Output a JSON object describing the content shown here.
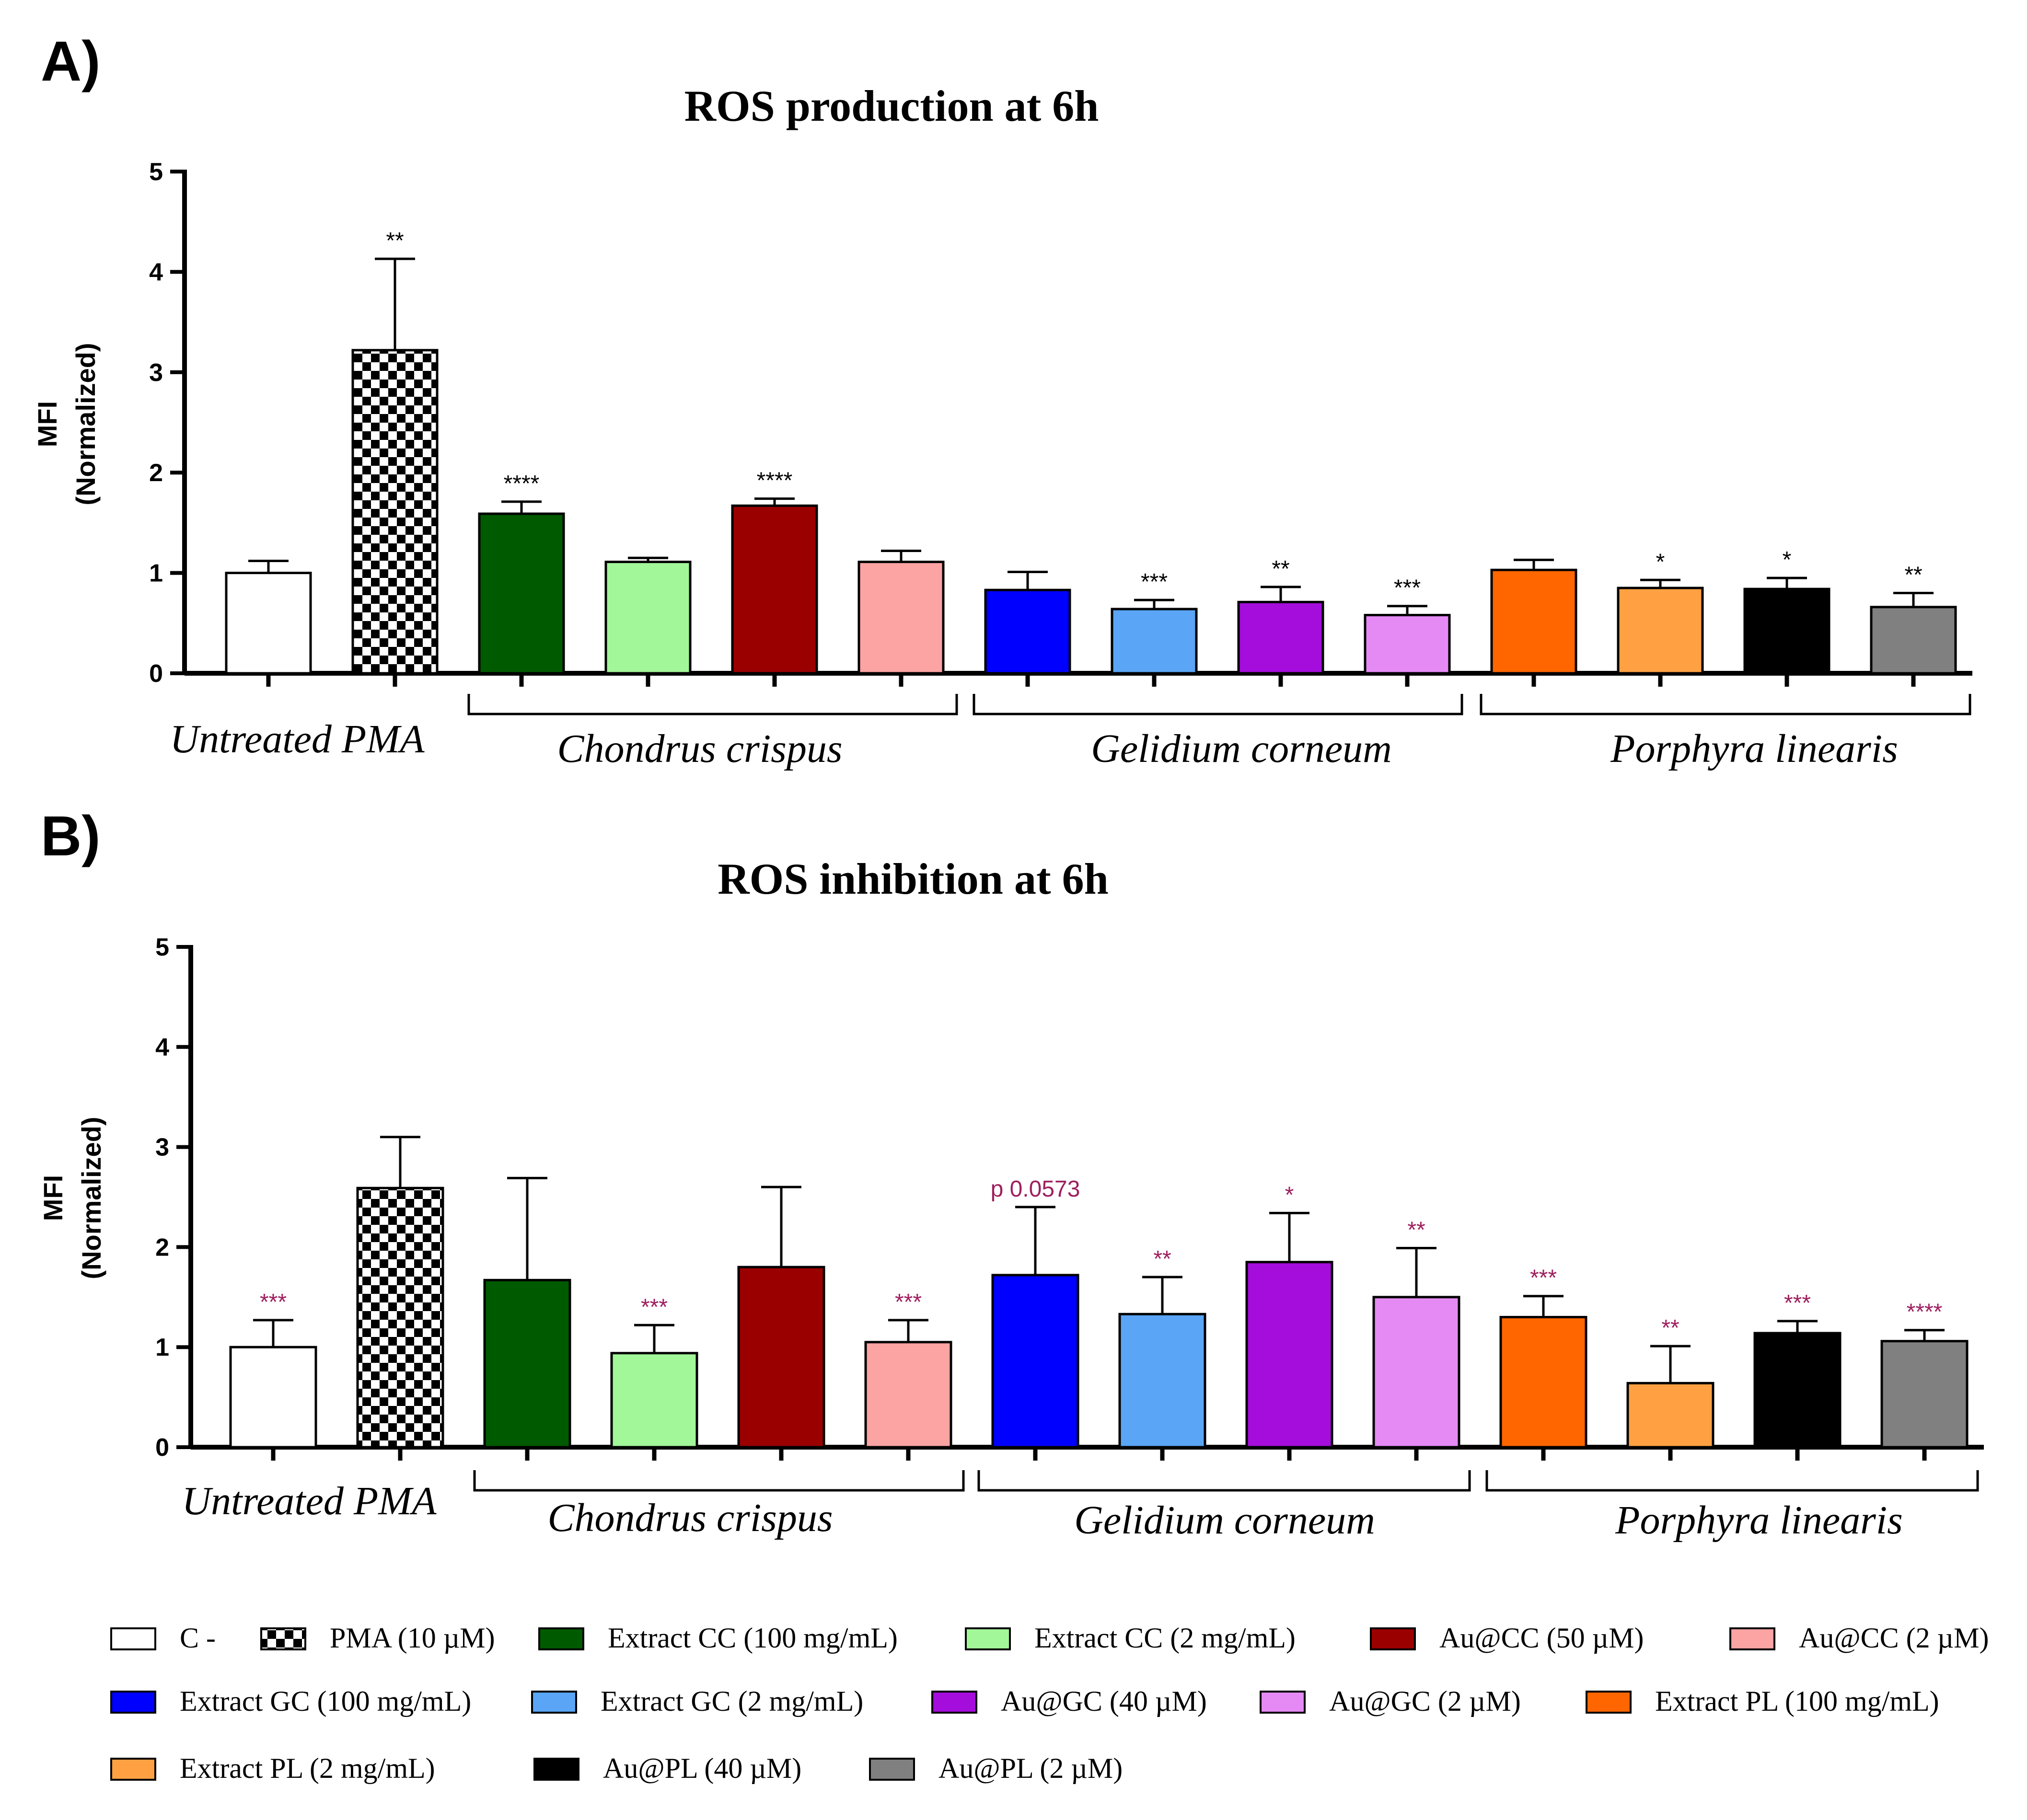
{
  "colors": {
    "C-": "#ffffff",
    "PMA": "checker",
    "Extract CC (100 mg/mL)": "#005a00",
    "Extract CC (2 mg/mL)": "#a2f799",
    "Au@CC (50 µM)": "#9b0000",
    "Au@CC (2 µM)": "#fca3a3",
    "Extract GC (100 mg/mL)": "#0000ff",
    "Extract GC (2 mg/mL)": "#5aa5f5",
    "Au@GC (40 µM)": "#a40ddb",
    "Au@GC (2 µM)": "#e58af5",
    "Extract PL (100 mg/mL)": "#ff6600",
    "Extract PL (2 mg/mL)": "#ffa142",
    "Au@PL (40 µM)": "#000000",
    "Au@PL (2 µM)": "#808080",
    "sig_b": "#9e1f5e"
  },
  "chart_data": [
    {
      "type": "bar",
      "panel": "A)",
      "title": "ROS production at 6h",
      "ylabel_line1": "MFI",
      "ylabel_line2": "(Normalized)",
      "ylim": [
        0,
        5
      ],
      "yticks": [
        "0",
        "1",
        "2",
        "3",
        "4",
        "5"
      ],
      "categories": [
        "C -",
        "PMA (10 µM)",
        "Extract CC (100 mg/mL)",
        "Extract CC (2 mg/mL)",
        "Au@CC (50 µM)",
        "Au@CC (2 µM)",
        "Extract GC (100 mg/mL)",
        "Extract GC (2 mg/mL)",
        "Au@GC (40 µM)",
        "Au@GC (2 µM)",
        "Extract PL (100 mg/mL)",
        "Extract PL (2 mg/mL)",
        "Au@PL (40 µM)",
        "Au@PL (2 µM)"
      ],
      "values": [
        1.0,
        3.22,
        1.59,
        1.11,
        1.67,
        1.11,
        0.83,
        0.64,
        0.71,
        0.58,
        1.03,
        0.85,
        0.84,
        0.66
      ],
      "error_top": [
        1.12,
        4.13,
        1.71,
        1.15,
        1.74,
        1.22,
        1.01,
        0.73,
        0.86,
        0.67,
        1.13,
        0.93,
        0.95,
        0.8
      ],
      "significance": [
        "",
        "**",
        "****",
        "",
        "****",
        "",
        "",
        "***",
        "**",
        "***",
        "",
        "*",
        "*",
        "**"
      ],
      "group_labels": [
        "Untreated PMA",
        "Chondrus crispus",
        "Gelidium corneum",
        "Porphyra linearis"
      ]
    },
    {
      "type": "bar",
      "panel": "B)",
      "title": "ROS inhibition at 6h",
      "ylabel_line1": "MFI",
      "ylabel_line2": "(Normalized)",
      "ylim": [
        0,
        5
      ],
      "yticks": [
        "0",
        "1",
        "2",
        "3",
        "4",
        "5"
      ],
      "categories": [
        "C -",
        "PMA (10 µM)",
        "Extract CC (100 mg/mL)",
        "Extract CC (2 mg/mL)",
        "Au@CC (50 µM)",
        "Au@CC (2 µM)",
        "Extract GC (100 mg/mL)",
        "Extract GC (2 mg/mL)",
        "Au@GC (40 µM)",
        "Au@GC (2 µM)",
        "Extract PL (100 mg/mL)",
        "Extract PL (2 mg/mL)",
        "Au@PL (40 µM)",
        "Au@PL (2 µM)"
      ],
      "values": [
        1.0,
        2.59,
        1.67,
        0.94,
        1.8,
        1.05,
        1.72,
        1.33,
        1.85,
        1.5,
        1.3,
        0.64,
        1.14,
        1.06
      ],
      "error_top": [
        1.27,
        3.1,
        2.69,
        1.22,
        2.6,
        1.27,
        2.4,
        1.7,
        2.34,
        1.99,
        1.51,
        1.01,
        1.26,
        1.17
      ],
      "significance": [
        "***",
        "",
        "",
        "***",
        "",
        "***",
        "p 0.0573",
        "**",
        "*",
        "**",
        "***",
        "**",
        "***",
        "****"
      ],
      "group_labels": [
        "Untreated PMA",
        "Chondrus crispus",
        "Gelidium corneum",
        "Porphyra linearis"
      ]
    }
  ],
  "legend": [
    {
      "label": "C -",
      "key": "C-"
    },
    {
      "label": "PMA (10 µM)",
      "key": "PMA"
    },
    {
      "label": "Extract CC (100 mg/mL)",
      "key": "Extract CC (100 mg/mL)"
    },
    {
      "label": "Extract CC (2 mg/mL)",
      "key": "Extract CC (2 mg/mL)"
    },
    {
      "label": "Au@CC (50 µM)",
      "key": "Au@CC (50 µM)"
    },
    {
      "label": "Au@CC (2 µM)",
      "key": "Au@CC (2 µM)"
    },
    {
      "label": "Extract GC (100 mg/mL)",
      "key": "Extract GC (100 mg/mL)"
    },
    {
      "label": "Extract GC (2 mg/mL)",
      "key": "Extract GC (2 mg/mL)"
    },
    {
      "label": "Au@GC (40 µM)",
      "key": "Au@GC (40 µM)"
    },
    {
      "label": "Au@GC (2 µM)",
      "key": "Au@GC (2 µM)"
    },
    {
      "label": "Extract PL (100 mg/mL)",
      "key": "Extract PL (100 mg/mL)"
    },
    {
      "label": "Extract PL (2 mg/mL)",
      "key": "Extract PL (2 mg/mL)"
    },
    {
      "label": "Au@PL (40 µM)",
      "key": "Au@PL (40 µM)"
    },
    {
      "label": "Au@PL (2 µM)",
      "key": "Au@PL (2 µM)"
    }
  ]
}
